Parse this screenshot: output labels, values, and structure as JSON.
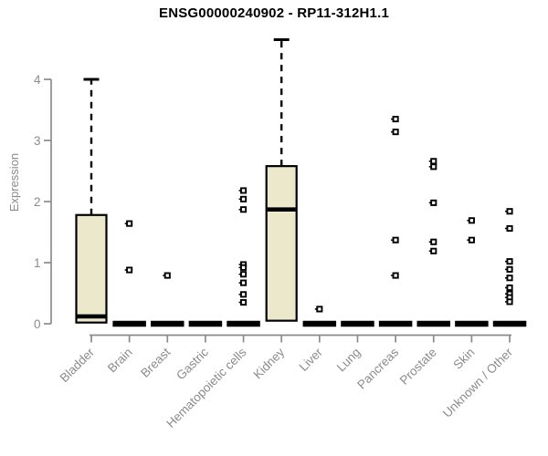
{
  "chart_data": {
    "type": "boxplot",
    "title": "ENSG00000240902 - RP11-312H1.1",
    "xlabel": "",
    "ylabel": "Expression",
    "ylim": [
      0,
      4.7
    ],
    "yticks": [
      0,
      1,
      2,
      3,
      4
    ],
    "grid": false,
    "legend": "none",
    "categories": [
      "Bladder",
      "Brain",
      "Breast",
      "Gastric",
      "Hematopoietic cells",
      "Kidney",
      "Liver",
      "Lung",
      "Pancreas",
      "Prostate",
      "Skin",
      "Unknown / Other"
    ],
    "boxes": [
      {
        "label": "Bladder",
        "min": 0,
        "q1": 0.02,
        "median": 0.12,
        "q3": 1.78,
        "max": 4.0,
        "outliers": []
      },
      {
        "label": "Brain",
        "min": 0,
        "q1": 0,
        "median": 0,
        "q3": 0,
        "max": 0,
        "outliers": [
          1.64,
          0.88
        ]
      },
      {
        "label": "Breast",
        "min": 0,
        "q1": 0,
        "median": 0,
        "q3": 0,
        "max": 0,
        "outliers": [
          0.79
        ]
      },
      {
        "label": "Gastric",
        "min": 0,
        "q1": 0,
        "median": 0,
        "q3": 0,
        "max": 0,
        "outliers": []
      },
      {
        "label": "Hematopoietic cells",
        "min": 0,
        "q1": 0,
        "median": 0,
        "q3": 0,
        "max": 0,
        "outliers": [
          2.18,
          2.04,
          1.87,
          0.97,
          0.92,
          0.81,
          0.67,
          0.48,
          0.35
        ]
      },
      {
        "label": "Kidney",
        "min": 0.05,
        "q1": 0.05,
        "median": 1.87,
        "q3": 2.58,
        "max": 4.65,
        "outliers": []
      },
      {
        "label": "Liver",
        "min": 0,
        "q1": 0,
        "median": 0,
        "q3": 0,
        "max": 0,
        "outliers": [
          0.24
        ]
      },
      {
        "label": "Lung",
        "min": 0,
        "q1": 0,
        "median": 0,
        "q3": 0,
        "max": 0,
        "outliers": []
      },
      {
        "label": "Pancreas",
        "min": 0,
        "q1": 0,
        "median": 0,
        "q3": 0,
        "max": 0,
        "outliers": [
          3.35,
          3.14,
          1.37,
          0.79
        ]
      },
      {
        "label": "Prostate",
        "min": 0,
        "q1": 0,
        "median": 0,
        "q3": 0,
        "max": 0,
        "outliers": [
          2.66,
          2.57,
          1.98,
          1.34,
          1.19
        ]
      },
      {
        "label": "Skin",
        "min": 0,
        "q1": 0,
        "median": 0,
        "q3": 0,
        "max": 0,
        "outliers": [
          1.69,
          1.37
        ]
      },
      {
        "label": "Unknown / Other",
        "min": 0,
        "q1": 0,
        "median": 0,
        "q3": 0,
        "max": 0,
        "outliers": [
          1.84,
          1.56,
          1.02,
          0.89,
          0.75,
          0.59,
          0.49,
          0.43,
          0.36
        ]
      }
    ],
    "colors": {
      "box_fill": "#ECE8CC",
      "box_stroke": "#000000",
      "median": "#000000",
      "flat_bar": "#000000",
      "outlier_stroke": "#000000",
      "outlier_fill": "#ffffff",
      "axis": "#8b8b8b",
      "tick_label": "#8b8b8b",
      "title": "#000000"
    }
  }
}
